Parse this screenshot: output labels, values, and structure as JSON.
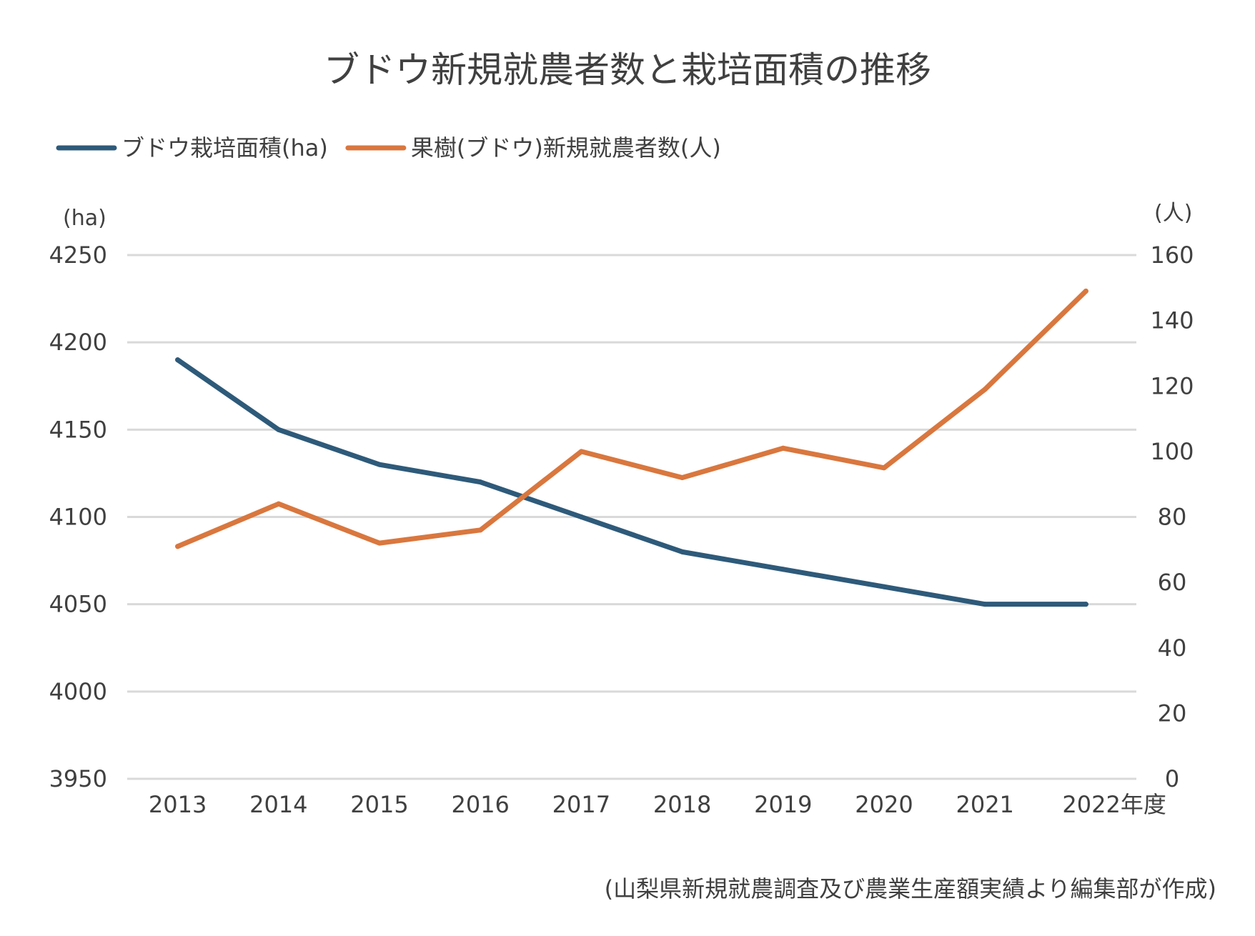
{
  "chart_data": {
    "type": "line",
    "title": "ブドウ新規就農者数と栽培面積の推移",
    "x": [
      "2013",
      "2014",
      "2015",
      "2016",
      "2017",
      "2018",
      "2019",
      "2020",
      "2021",
      "2022年度"
    ],
    "series": [
      {
        "name": "ブドウ栽培面積(ha)",
        "axis": "left",
        "color": "#2e5a7a",
        "values": [
          4190,
          4150,
          4130,
          4120,
          4100,
          4080,
          4070,
          4060,
          4050,
          4050
        ]
      },
      {
        "name": "果樹(ブドウ)新規就農者数(人)",
        "axis": "right",
        "color": "#d9773e",
        "values": [
          71,
          84,
          72,
          76,
          100,
          92,
          101,
          95,
          119,
          149
        ]
      }
    ],
    "y_left": {
      "label": "(ha)",
      "range": [
        3950,
        4250
      ],
      "ticks": [
        "3950",
        "4000",
        "4050",
        "4100",
        "4150",
        "4200",
        "4250"
      ]
    },
    "y_right": {
      "label": "(人)",
      "range": [
        0,
        160
      ],
      "ticks": [
        "0",
        "20",
        "40",
        "60",
        "80",
        "100",
        "120",
        "140",
        "160"
      ]
    },
    "grid": true,
    "legend": "top-left",
    "source": "(山梨県新規就農調査及び農業生産額実績より編集部が作成)"
  }
}
